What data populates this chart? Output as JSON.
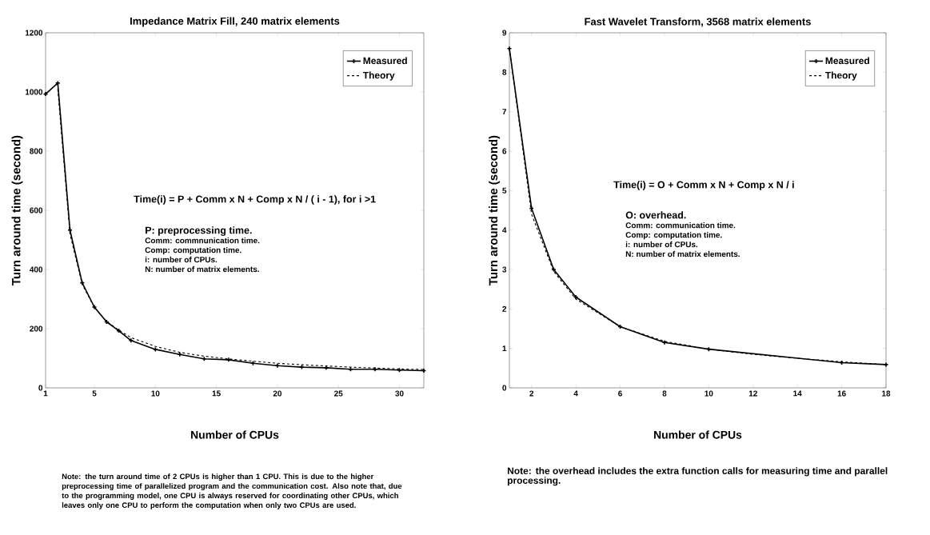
{
  "chart_data": [
    {
      "type": "line",
      "title": "Impedance Matrix Fill, 240 matrix elements",
      "xlabel": "Number of CPUs",
      "ylabel": "Turn around time (second)",
      "xlim": [
        1,
        32
      ],
      "ylim": [
        0,
        1200
      ],
      "xticks": [
        1,
        5,
        10,
        15,
        20,
        25,
        30
      ],
      "yticks": [
        0,
        200,
        400,
        600,
        800,
        1000,
        1200
      ],
      "legend": "top right",
      "grid": false,
      "series": [
        {
          "name": "Measured",
          "color": "#000000",
          "marker": "cross",
          "line_style": "solid",
          "x": [
            1,
            2,
            3,
            4,
            5,
            6,
            7,
            8,
            10,
            12,
            14,
            16,
            18,
            20,
            22,
            24,
            26,
            28,
            30,
            32
          ],
          "values": [
            993,
            1030,
            533,
            355,
            273,
            223,
            193,
            160,
            130,
            113,
            98,
            95,
            83,
            75,
            70,
            68,
            63,
            63,
            60,
            58
          ]
        },
        {
          "name": "Theory",
          "color": "#000000",
          "marker": "none",
          "line_style": "dashed",
          "x": [
            2,
            3,
            4,
            5,
            6,
            7,
            8,
            10,
            12,
            14,
            16,
            18,
            20,
            22,
            24,
            26,
            28,
            30,
            32
          ],
          "values": [
            1010,
            520,
            350,
            272,
            225,
            195,
            170,
            140,
            120,
            107,
            98,
            90,
            83,
            78,
            74,
            70,
            67,
            64,
            62
          ]
        }
      ],
      "annotations": [
        "Time(i) = P + Comm x N + Comp x N / ( i - 1), for i >1",
        "P: preprocessing time.",
        "Comm: commnunication time.",
        "Comp: computation time.",
        "i: number of CPUs.",
        "N: number of matrix elements.",
        "Note: the turn around time of 2 CPUs is higher than 1 CPU. This is due to the higher preprocessing time of parallelized program and the communication cost. Also note that, due to the programming model, one CPU is always reserved for coordinating other CPUs, which leaves only one CPU to perform the computation when only two CPUs are used."
      ]
    },
    {
      "type": "line",
      "title": "Fast Wavelet Transform, 3568 matrix elements",
      "xlabel": "Number of CPUs",
      "ylabel": "Turn around time (second)",
      "xlim": [
        1,
        18
      ],
      "ylim": [
        0,
        9
      ],
      "xticks": [
        2,
        4,
        6,
        8,
        10,
        12,
        14,
        16,
        18
      ],
      "yticks": [
        0,
        1,
        2,
        3,
        4,
        5,
        6,
        7,
        8,
        9
      ],
      "legend": "top right",
      "grid": false,
      "series": [
        {
          "name": "Measured",
          "color": "#000000",
          "marker": "cross",
          "line_style": "solid",
          "x": [
            1,
            2,
            3,
            4,
            6,
            8,
            10,
            16,
            18
          ],
          "values": [
            8.6,
            4.55,
            3.0,
            2.3,
            1.55,
            1.15,
            0.98,
            0.64,
            0.59
          ]
        },
        {
          "name": "Theory",
          "color": "#000000",
          "marker": "none",
          "line_style": "dashed",
          "x": [
            1,
            2,
            3,
            4,
            6,
            8,
            10,
            12,
            14,
            16,
            18
          ],
          "values": [
            8.6,
            4.4,
            2.95,
            2.25,
            1.55,
            1.18,
            0.98,
            0.85,
            0.75,
            0.66,
            0.59
          ]
        }
      ],
      "annotations": [
        "Time(i) = O + Comm x N + Comp x N / i",
        "O: overhead.",
        "Comm: communication time.",
        "Comp: computation time.",
        "i: number of CPUs.",
        "N: number of matrix elements.",
        "Note: the overhead includes the extra function calls for measuring time and parallel processing."
      ]
    }
  ]
}
